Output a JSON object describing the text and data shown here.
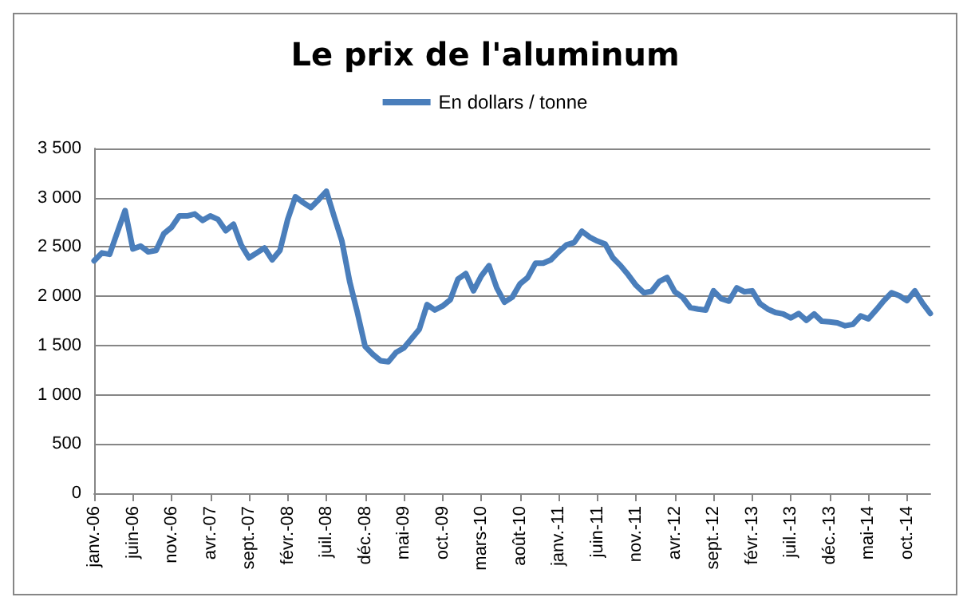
{
  "chart_data": {
    "type": "line",
    "title": "Le prix de l'aluminum",
    "categories": [
      "janv.-06",
      null,
      null,
      null,
      null,
      "juin-06",
      null,
      null,
      null,
      null,
      "nov.-06",
      null,
      null,
      null,
      null,
      "avr.-07",
      null,
      null,
      null,
      null,
      "sept.-07",
      null,
      null,
      null,
      null,
      "févr.-08",
      null,
      null,
      null,
      null,
      "juil.-08",
      null,
      null,
      null,
      null,
      "déc.-08",
      null,
      null,
      null,
      null,
      "mai-09",
      null,
      null,
      null,
      null,
      "oct.-09",
      null,
      null,
      null,
      null,
      "mars-10",
      null,
      null,
      null,
      null,
      "août-10",
      null,
      null,
      null,
      null,
      "janv.-11",
      null,
      null,
      null,
      null,
      "juin-11",
      null,
      null,
      null,
      null,
      "nov.-11",
      null,
      null,
      null,
      null,
      "avr.-12",
      null,
      null,
      null,
      null,
      "sept.-12",
      null,
      null,
      null,
      null,
      "févr.-13",
      null,
      null,
      null,
      null,
      "juil.-13",
      null,
      null,
      null,
      null,
      "déc.-13",
      null,
      null,
      null,
      null,
      "mai-14",
      null,
      null,
      null,
      null,
      "oct.-14",
      null,
      null,
      null
    ],
    "series": [
      {
        "name": "En dollars / tonne",
        "color": "#4a7ebb",
        "values": [
          2360,
          2440,
          2425,
          2650,
          2870,
          2480,
          2510,
          2450,
          2465,
          2635,
          2700,
          2815,
          2815,
          2835,
          2770,
          2815,
          2780,
          2665,
          2730,
          2520,
          2390,
          2440,
          2490,
          2370,
          2465,
          2780,
          3010,
          2950,
          2900,
          2980,
          3065,
          2810,
          2560,
          2150,
          1835,
          1490,
          1410,
          1345,
          1335,
          1430,
          1475,
          1570,
          1665,
          1915,
          1860,
          1900,
          1965,
          2175,
          2230,
          2055,
          2205,
          2310,
          2085,
          1940,
          1990,
          2125,
          2190,
          2335,
          2335,
          2370,
          2450,
          2520,
          2545,
          2660,
          2600,
          2560,
          2530,
          2390,
          2310,
          2215,
          2110,
          2035,
          2050,
          2150,
          2190,
          2045,
          1990,
          1885,
          1870,
          1860,
          2055,
          1975,
          1950,
          2085,
          2045,
          2055,
          1925,
          1870,
          1835,
          1820,
          1780,
          1825,
          1755,
          1820,
          1745,
          1740,
          1730,
          1700,
          1715,
          1800,
          1770,
          1860,
          1955,
          2035,
          2005,
          1955,
          2055,
          1930,
          1825
        ]
      }
    ],
    "ylim": [
      0,
      3500
    ],
    "yticks": [
      0,
      500,
      {
        "value": 1000,
        "label": "1 000"
      },
      {
        "value": 1500,
        "label": "1 500"
      },
      {
        "value": 2000,
        "label": "2 000"
      },
      {
        "value": 2500,
        "label": "2 500"
      },
      {
        "value": 3000,
        "label": "3 000"
      },
      {
        "value": 3500,
        "label": "3 500"
      }
    ],
    "grid": "y",
    "legend": "top",
    "marker": "none",
    "line_style": "solid"
  }
}
